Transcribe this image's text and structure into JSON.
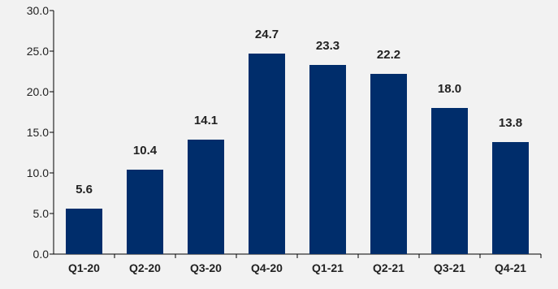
{
  "chart_data": {
    "type": "bar",
    "categories": [
      "Q1-20",
      "Q2-20",
      "Q3-20",
      "Q4-20",
      "Q1-21",
      "Q2-21",
      "Q3-21",
      "Q4-21"
    ],
    "values": [
      5.6,
      10.4,
      14.1,
      24.7,
      23.3,
      22.2,
      18.0,
      13.8
    ],
    "data_labels": [
      "5.6",
      "10.4",
      "14.1",
      "24.7",
      "23.3",
      "22.2",
      "18.0",
      "13.8"
    ],
    "y_ticks": [
      "0.0",
      "5.0",
      "10.0",
      "15.0",
      "20.0",
      "25.0",
      "30.0"
    ],
    "title": "",
    "xlabel": "",
    "ylabel": "",
    "ylim": [
      0,
      30
    ],
    "grid": false,
    "legend": "none",
    "colors": {
      "bar": "#002d6b",
      "axis": "#000000",
      "background": "#f2f2f2"
    }
  }
}
